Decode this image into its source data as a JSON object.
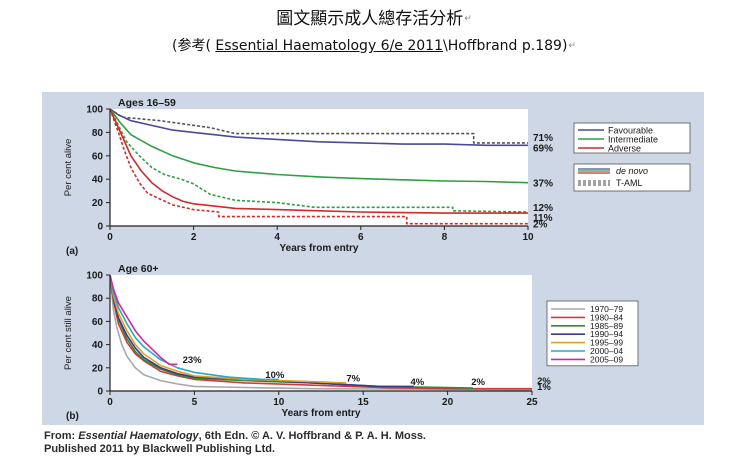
{
  "header": {
    "title": "圖文顯示成人總存活分析",
    "return_mark": "↵",
    "subtitle_open": "(参考( ",
    "subtitle_link": "Essential Haematology 6/e 2011",
    "subtitle_rest": "\\Hoffbrand p.189)"
  },
  "credit": {
    "line1_prefix": "From: ",
    "line1_pub": "Essential Haematology",
    "line1_rest": ", 6th Edn. © A. V. Hoffbrand & P. A. H. Moss.",
    "line2": "Published 2011 by Blackwell Publishing Ltd."
  },
  "chart_data": [
    {
      "type": "line",
      "panel_label": "(a)",
      "title": "Ages 16–59",
      "xlabel": "Years from entry",
      "ylabel": "Per cent alive",
      "xlim": [
        0,
        10
      ],
      "ylim": [
        0,
        100
      ],
      "xticks": [
        0,
        2,
        4,
        6,
        8,
        10
      ],
      "yticks": [
        0,
        20,
        40,
        60,
        80,
        100
      ],
      "legend_groups": [
        [
          {
            "name": "Favourable",
            "color": "#4a4a9c",
            "dash": false
          },
          {
            "name": "Intermediate",
            "color": "#2ea043",
            "dash": false
          },
          {
            "name": "Adverse",
            "color": "#d02a2a",
            "dash": false
          }
        ],
        [
          {
            "name": "de novo",
            "style": "solid",
            "italic": true
          },
          {
            "name": "T-AML",
            "style": "dashed",
            "italic": false
          }
        ]
      ],
      "series": [
        {
          "name": "Favourable",
          "color": "#4a4a9c",
          "dash": false,
          "label": "69%",
          "points": [
            [
              0,
              100
            ],
            [
              0.2,
              95
            ],
            [
              0.5,
              90
            ],
            [
              1,
              86
            ],
            [
              1.5,
              82
            ],
            [
              2,
              80
            ],
            [
              2.5,
              78
            ],
            [
              3,
              76
            ],
            [
              3.5,
              75
            ],
            [
              4,
              74
            ],
            [
              5,
              72
            ],
            [
              6,
              71
            ],
            [
              7,
              70
            ],
            [
              8,
              70
            ],
            [
              9,
              69
            ],
            [
              10,
              69
            ]
          ]
        },
        {
          "name": "Favourable T-AML",
          "color": "#555555",
          "dash": true,
          "label": "71%",
          "points": [
            [
              0,
              100
            ],
            [
              0.3,
              93
            ],
            [
              1.2,
              90
            ],
            [
              2.4,
              84
            ],
            [
              3,
              79
            ],
            [
              8.7,
              79
            ],
            [
              8.7,
              71
            ],
            [
              10,
              71
            ]
          ]
        },
        {
          "name": "Intermediate",
          "color": "#2ea043",
          "dash": false,
          "label": "37%",
          "points": [
            [
              0,
              100
            ],
            [
              0.25,
              88
            ],
            [
              0.5,
              78
            ],
            [
              1,
              68
            ],
            [
              1.5,
              60
            ],
            [
              2,
              54
            ],
            [
              2.5,
              50
            ],
            [
              3,
              47
            ],
            [
              4,
              44
            ],
            [
              5,
              42
            ],
            [
              6,
              40.5
            ],
            [
              7,
              39.5
            ],
            [
              8,
              38.5
            ],
            [
              9,
              38
            ],
            [
              10,
              37
            ]
          ]
        },
        {
          "name": "Intermediate T-AML",
          "color": "#2ea043",
          "dash": true,
          "label": "12%",
          "points": [
            [
              0,
              100
            ],
            [
              0.2,
              86
            ],
            [
              0.4,
              72
            ],
            [
              0.7,
              60
            ],
            [
              1,
              50
            ],
            [
              1.3,
              44
            ],
            [
              1.7,
              40
            ],
            [
              2,
              36
            ],
            [
              2.4,
              27
            ],
            [
              3,
              22
            ],
            [
              4,
              20
            ],
            [
              4.9,
              16
            ],
            [
              8.2,
              16
            ],
            [
              8.2,
              13
            ],
            [
              10,
              12
            ]
          ]
        },
        {
          "name": "Adverse",
          "color": "#d02a2a",
          "dash": false,
          "label": "11%",
          "points": [
            [
              0,
              100
            ],
            [
              0.25,
              80
            ],
            [
              0.5,
              60
            ],
            [
              0.75,
              47
            ],
            [
              1,
              37
            ],
            [
              1.25,
              30
            ],
            [
              1.5,
              25
            ],
            [
              1.75,
              21
            ],
            [
              2,
              19
            ],
            [
              2.5,
              17
            ],
            [
              3,
              15
            ],
            [
              4,
              14
            ],
            [
              5,
              13
            ],
            [
              6,
              12
            ],
            [
              8,
              11
            ],
            [
              10,
              11
            ]
          ]
        },
        {
          "name": "Adverse T-AML",
          "color": "#d02a2a",
          "dash": true,
          "label": "2%",
          "points": [
            [
              0,
              100
            ],
            [
              0.1,
              90
            ],
            [
              0.2,
              80
            ],
            [
              0.35,
              64
            ],
            [
              0.5,
              50
            ],
            [
              0.7,
              37
            ],
            [
              0.9,
              28
            ],
            [
              1.2,
              23
            ],
            [
              1.5,
              18
            ],
            [
              2,
              14
            ],
            [
              2.6,
              12
            ],
            [
              2.6,
              8
            ],
            [
              7.1,
              8
            ],
            [
              7.1,
              2
            ],
            [
              10,
              2
            ]
          ]
        }
      ]
    },
    {
      "type": "line",
      "panel_label": "(b)",
      "title": "Age 60+",
      "xlabel": "Years from entry",
      "ylabel": "Per cent still alive",
      "xlim": [
        0,
        25
      ],
      "ylim": [
        0,
        100
      ],
      "xticks": [
        0,
        5,
        10,
        15,
        20,
        25
      ],
      "yticks": [
        0,
        20,
        40,
        60,
        80,
        100
      ],
      "annotations": [
        {
          "text": "23%",
          "x": 4.3,
          "y": 24
        },
        {
          "text": "10%",
          "x": 9.2,
          "y": 11
        },
        {
          "text": "7%",
          "x": 14,
          "y": 8
        },
        {
          "text": "4%",
          "x": 17.8,
          "y": 5
        },
        {
          "text": "2%",
          "x": 21.4,
          "y": 5
        },
        {
          "text": "2%",
          "x": 25.3,
          "y": 6
        },
        {
          "text": "1%",
          "x": 25.3,
          "y": 1
        }
      ],
      "series": [
        {
          "name": "1970–79",
          "color": "#a8a8a8",
          "points": [
            [
              0,
              100
            ],
            [
              0.2,
              70
            ],
            [
              0.4,
              55
            ],
            [
              0.7,
              40
            ],
            [
              1,
              30
            ],
            [
              1.5,
              20
            ],
            [
              2,
              14
            ],
            [
              3,
              9
            ],
            [
              4,
              6
            ],
            [
              5,
              4
            ],
            [
              8,
              3
            ],
            [
              12,
              2
            ],
            [
              20,
              1.5
            ],
            [
              25,
              1
            ]
          ]
        },
        {
          "name": "1980–84",
          "color": "#d43a3a",
          "points": [
            [
              0,
              100
            ],
            [
              0.2,
              78
            ],
            [
              0.5,
              58
            ],
            [
              1,
              42
            ],
            [
              1.5,
              32
            ],
            [
              2,
              26
            ],
            [
              3,
              17
            ],
            [
              4,
              13
            ],
            [
              5,
              10
            ],
            [
              8,
              7
            ],
            [
              12,
              5
            ],
            [
              16,
              3
            ],
            [
              20,
              2
            ],
            [
              25,
              2
            ]
          ]
        },
        {
          "name": "1985–89",
          "color": "#2a8d3a",
          "points": [
            [
              0,
              100
            ],
            [
              0.2,
              80
            ],
            [
              0.5,
              62
            ],
            [
              1,
              45
            ],
            [
              1.5,
              34
            ],
            [
              2,
              27
            ],
            [
              3,
              19
            ],
            [
              4,
              14
            ],
            [
              5,
              11
            ],
            [
              8,
              9
            ],
            [
              12,
              7
            ],
            [
              16,
              4
            ],
            [
              20,
              3
            ],
            [
              21.5,
              2.5
            ]
          ]
        },
        {
          "name": "1990–94",
          "color": "#3a3a8c",
          "points": [
            [
              0,
              100
            ],
            [
              0.2,
              80
            ],
            [
              0.5,
              63
            ],
            [
              1,
              48
            ],
            [
              1.5,
              37
            ],
            [
              2,
              29
            ],
            [
              3,
              20
            ],
            [
              4,
              15
            ],
            [
              5,
              12
            ],
            [
              8,
              10
            ],
            [
              12,
              7
            ],
            [
              16,
              4
            ],
            [
              18,
              4
            ]
          ]
        },
        {
          "name": "1995–99",
          "color": "#e0a020",
          "points": [
            [
              0,
              100
            ],
            [
              0.2,
              82
            ],
            [
              0.5,
              67
            ],
            [
              1,
              52
            ],
            [
              1.5,
              40
            ],
            [
              2,
              32
            ],
            [
              3,
              22
            ],
            [
              4,
              17
            ],
            [
              5,
              13
            ],
            [
              8,
              10
            ],
            [
              12,
              8
            ],
            [
              14,
              7
            ]
          ]
        },
        {
          "name": "2000–04",
          "color": "#2aa8c8",
          "points": [
            [
              0,
              100
            ],
            [
              0.2,
              85
            ],
            [
              0.5,
              72
            ],
            [
              1,
              58
            ],
            [
              1.5,
              46
            ],
            [
              2,
              38
            ],
            [
              3,
              27
            ],
            [
              4,
              20
            ],
            [
              5,
              16
            ],
            [
              7,
              12
            ],
            [
              9,
              10
            ],
            [
              10,
              10
            ]
          ]
        },
        {
          "name": "2005–09",
          "color": "#d02aa0",
          "points": [
            [
              0,
              100
            ],
            [
              0.2,
              88
            ],
            [
              0.5,
              76
            ],
            [
              1,
              64
            ],
            [
              1.5,
              52
            ],
            [
              2,
              43
            ],
            [
              2.5,
              36
            ],
            [
              3,
              29
            ],
            [
              3.5,
              23
            ],
            [
              4,
              23
            ]
          ]
        }
      ]
    }
  ]
}
